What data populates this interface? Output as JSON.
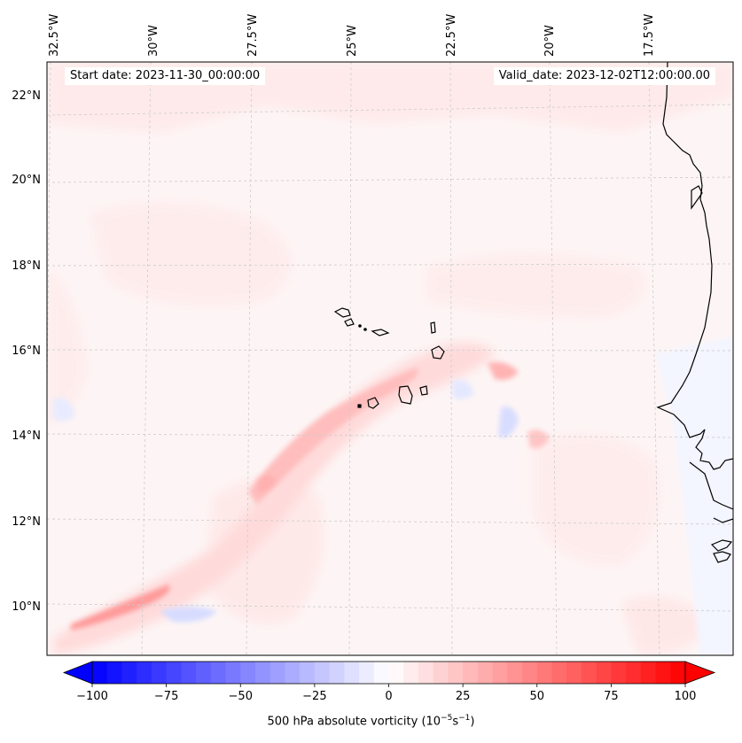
{
  "header": {
    "start_date": "Start date: 2023-11-30_00:00:00",
    "valid_date": "Valid_date: 2023-12-02T12:00:00.00"
  },
  "map": {
    "lon_labels": [
      "32.5°W",
      "30°W",
      "27.5°W",
      "25°W",
      "22.5°W",
      "20°W",
      "17.5°W"
    ],
    "lat_labels": [
      "22°N",
      "20°N",
      "18°N",
      "16°N",
      "14°N",
      "12°N",
      "10°N"
    ],
    "gridlines": true,
    "field": "500 hPa absolute vorticity"
  },
  "colorbar": {
    "min": -100,
    "max": 100,
    "ticks": [
      "−100",
      "−75",
      "−50",
      "−25",
      "0",
      "25",
      "50",
      "75",
      "100"
    ],
    "tick_values": [
      -100,
      -75,
      -50,
      -25,
      0,
      25,
      50,
      75,
      100
    ],
    "extend": "both",
    "label_main": "500 hPa absolute vorticity (10",
    "label_exp1": "−5",
    "label_mid": "s",
    "label_exp2": "−1",
    "label_end": ")",
    "color_negative": "#0000ff",
    "color_positive": "#ff0000",
    "color_zero": "#ffffff"
  },
  "colors": {
    "coastline": "#000000",
    "gridline": "#cccccc",
    "background": "#fdf4f4"
  }
}
